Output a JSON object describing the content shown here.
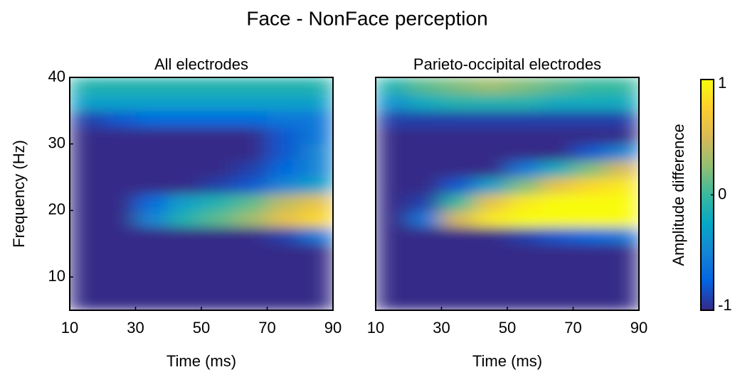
{
  "title": "Face - NonFace perception",
  "chart_data": [
    {
      "type": "heatmap",
      "title": "All electrodes",
      "xlabel": "Time (ms)",
      "ylabel": "Frequency (Hz)",
      "x_edges": [
        10,
        20,
        30,
        40,
        50,
        60,
        70,
        80,
        90
      ],
      "y_edges": [
        5,
        7.5,
        10,
        12.5,
        15,
        17.5,
        20,
        22.5,
        25,
        27.5,
        30,
        32.5,
        35,
        37.5,
        40
      ],
      "z": [
        [
          -1,
          -1,
          -1,
          -1,
          -1,
          -1,
          -1,
          -1
        ],
        [
          -1,
          -1,
          -1,
          -1,
          -1,
          -1,
          -1,
          -1
        ],
        [
          -1,
          -1,
          -1,
          -1,
          -1,
          -1,
          -1,
          -1
        ],
        [
          -1,
          -1,
          -1,
          -1,
          -1,
          -1,
          -1,
          -1
        ],
        [
          -1,
          -1,
          -1,
          -1,
          -1,
          -1,
          -0.9,
          -0.6
        ],
        [
          -1,
          -1,
          -0.5,
          -0.1,
          0.1,
          0.3,
          0.6,
          0.8
        ],
        [
          -1,
          -1,
          -0.7,
          -0.3,
          -0.1,
          0.1,
          0.4,
          0.6
        ],
        [
          -1,
          -1,
          -1,
          -1,
          -0.9,
          -0.8,
          -0.5,
          -0.3
        ],
        [
          -1,
          -1,
          -1,
          -1,
          -1,
          -0.9,
          -0.7,
          -0.5
        ],
        [
          -1,
          -1,
          -1,
          -1,
          -1,
          -1,
          -0.8,
          -0.5
        ],
        [
          -1,
          -1,
          -1,
          -1,
          -1,
          -1,
          -0.8,
          -0.6
        ],
        [
          -0.9,
          -0.8,
          -0.7,
          -0.7,
          -0.7,
          -0.7,
          -0.6,
          -0.6
        ],
        [
          -0.3,
          -0.3,
          -0.3,
          -0.3,
          -0.3,
          -0.3,
          -0.3,
          -0.3
        ],
        [
          -0.1,
          -0.1,
          -0.1,
          -0.1,
          -0.1,
          -0.1,
          -0.1,
          -0.1
        ]
      ],
      "xlim": [
        10,
        90
      ],
      "ylim": [
        5,
        40
      ],
      "xticks": [
        10,
        30,
        50,
        70,
        90
      ],
      "yticks": [
        10,
        20,
        30,
        40
      ]
    },
    {
      "type": "heatmap",
      "title": "Parieto-occipital electrodes",
      "xlabel": "Time (ms)",
      "x_edges": [
        10,
        20,
        30,
        40,
        50,
        60,
        70,
        80,
        90
      ],
      "y_edges": [
        5,
        7.5,
        10,
        12.5,
        15,
        17.5,
        20,
        22.5,
        25,
        27.5,
        30,
        32.5,
        35,
        37.5,
        40
      ],
      "z": [
        [
          -1,
          -1,
          -1,
          -1,
          -1,
          -1,
          -1,
          -1
        ],
        [
          -1,
          -1,
          -1,
          -1,
          -1,
          -1,
          -1,
          -1
        ],
        [
          -1,
          -1,
          -1,
          -1,
          -1,
          -1,
          -1,
          -1
        ],
        [
          -1,
          -1,
          -1,
          -1,
          -1,
          -1,
          -1,
          -1
        ],
        [
          -1,
          -1,
          -1,
          -1,
          -0.9,
          -0.8,
          -0.7,
          -0.6
        ],
        [
          -1,
          -0.6,
          0.5,
          0.9,
          1,
          1,
          1,
          1
        ],
        [
          -1,
          -0.9,
          0,
          0.6,
          0.9,
          1,
          1,
          1
        ],
        [
          -1,
          -1,
          -0.8,
          -0.3,
          0.2,
          0.6,
          0.8,
          0.9
        ],
        [
          -1,
          -1,
          -1,
          -1,
          -0.6,
          -0.2,
          0.2,
          0.5
        ],
        [
          -1,
          -1,
          -1,
          -1,
          -1,
          -1,
          -0.8,
          -0.5
        ],
        [
          -1,
          -1,
          -1,
          -1,
          -1,
          -1,
          -1,
          -1
        ],
        [
          -0.9,
          -0.9,
          -0.9,
          -0.9,
          -0.9,
          -0.9,
          -0.9,
          -0.9
        ],
        [
          -0.4,
          -0.2,
          -0.1,
          -0.1,
          -0.1,
          -0.2,
          -0.2,
          -0.2
        ],
        [
          -0.1,
          0.1,
          0.2,
          0.3,
          0.2,
          0.1,
          0,
          0
        ]
      ],
      "xlim": [
        10,
        90
      ],
      "ylim": [
        5,
        40
      ],
      "xticks": [
        10,
        30,
        50,
        70,
        90
      ],
      "colorbar": {
        "label": "Amplitude difference",
        "clim": [
          -1,
          1
        ],
        "ticks": [
          -1,
          0,
          1
        ],
        "colormap": [
          "#352a87",
          "#0363e1",
          "#1485d4",
          "#06a7c6",
          "#38b99e",
          "#92bf73",
          "#d9ba56",
          "#fcce2e",
          "#f9fb0e"
        ]
      }
    }
  ]
}
